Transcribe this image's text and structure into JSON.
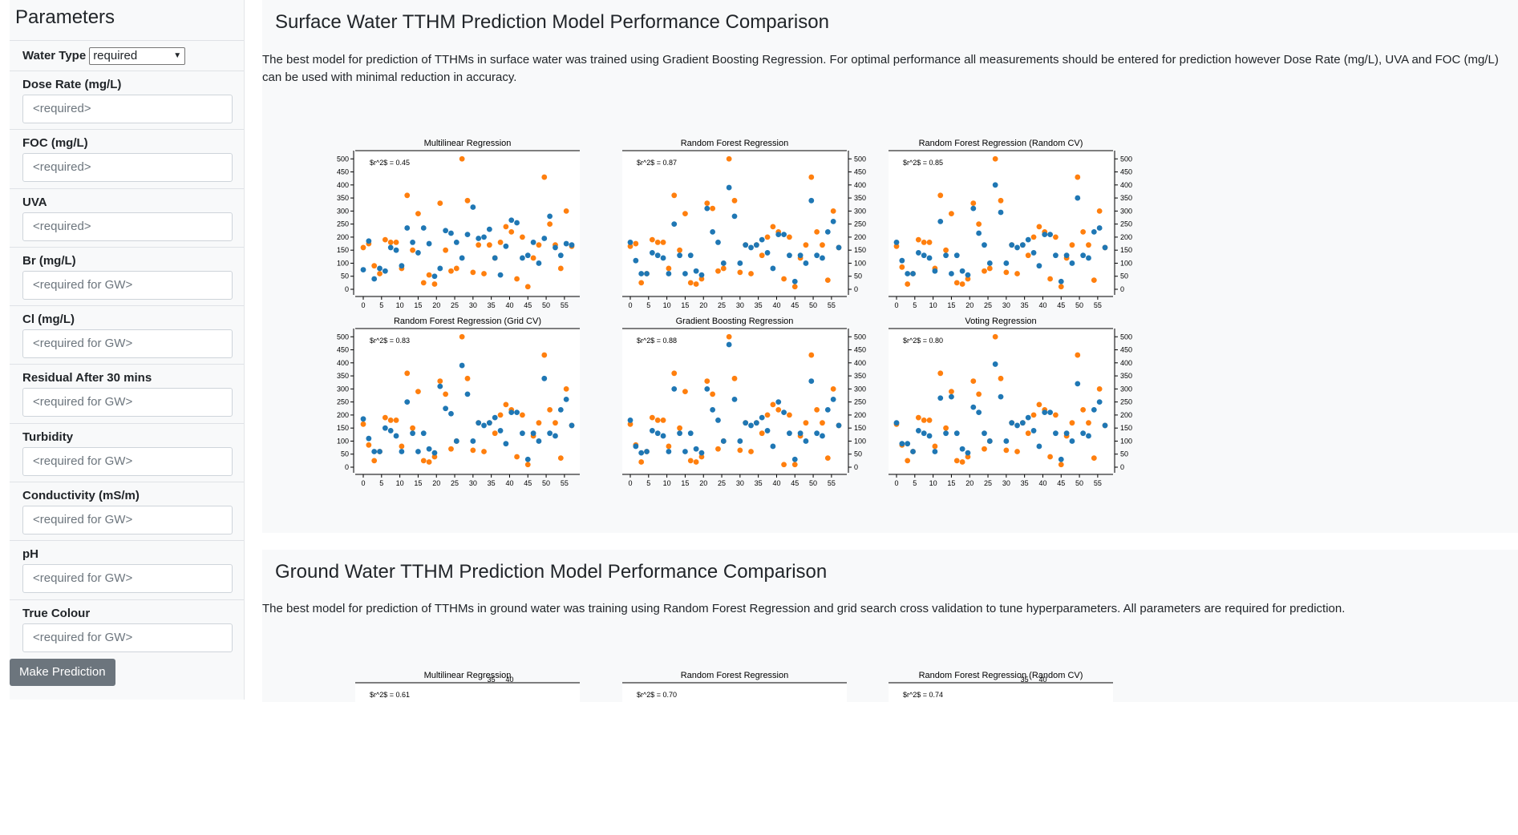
{
  "sidebar": {
    "title": "Parameters",
    "water_type_label": "Water Type",
    "water_type_value": "required",
    "fields": [
      {
        "label": "Dose Rate (mg/L)",
        "placeholder": "<required>"
      },
      {
        "label": "FOC (mg/L)",
        "placeholder": "<required>"
      },
      {
        "label": "UVA",
        "placeholder": "<required>"
      },
      {
        "label": "Br (mg/L)",
        "placeholder": "<required for GW>"
      },
      {
        "label": "Cl (mg/L)",
        "placeholder": "<required for GW>"
      },
      {
        "label": "Residual After 30 mins",
        "placeholder": "<required for GW>"
      },
      {
        "label": "Turbidity",
        "placeholder": "<required for GW>"
      },
      {
        "label": "Conductivity (mS/m)",
        "placeholder": "<required for GW>"
      },
      {
        "label": "pH",
        "placeholder": "<required for GW>"
      },
      {
        "label": "True Colour",
        "placeholder": "<required for GW>"
      }
    ],
    "predict_label": "Make Prediction"
  },
  "surface": {
    "title": "Surface Water TTHM Prediction Model Performance Comparison",
    "description": "The best model for prediction of TTHMs in surface water was trained using Gradient Boosting Regression. For optimal performance all measurements should be entered for prediction however Dose Rate (mg/L), UVA and FOC (mg/L) can be used with minimal reduction in accuracy."
  },
  "ground": {
    "title": "Ground Water TTHM Prediction Model Performance Comparison",
    "description": "The best model for prediction of TTHMs in ground water was training using Random Forest Regression and grid search cross validation to tune hyperparameters. All parameters are required for prediction."
  },
  "colors": {
    "actual": "#ff7f0e",
    "predicted": "#1f77b4"
  },
  "chart_data": [
    {
      "type": "scatter",
      "title": "Multilinear Regression",
      "annotation": "$r^2$ = 0.45",
      "xticks": [
        0,
        5,
        10,
        15,
        20,
        25,
        30,
        35,
        40,
        45,
        50,
        55
      ],
      "yticks": [
        0,
        50,
        100,
        150,
        200,
        250,
        300,
        350,
        400,
        450,
        500
      ],
      "ylim": [
        0,
        510
      ],
      "series": [
        {
          "values": [
            160,
            175,
            90,
            60,
            190,
            180,
            180,
            80,
            360,
            150,
            290,
            25,
            55,
            20,
            330,
            150,
            70,
            80,
            500,
            340,
            65,
            170,
            60,
            170,
            120,
            180,
            240,
            220,
            40,
            200,
            10,
            120,
            170,
            430,
            250,
            170,
            80,
            300,
            165
          ]
        },
        {
          "values": [
            75,
            185,
            40,
            80,
            70,
            160,
            150,
            90,
            235,
            180,
            140,
            235,
            175,
            50,
            80,
            225,
            215,
            180,
            120,
            210,
            315,
            195,
            200,
            230,
            120,
            55,
            165,
            265,
            255,
            120,
            130,
            180,
            100,
            195,
            280,
            160,
            130,
            175,
            170
          ]
        }
      ]
    },
    {
      "type": "scatter",
      "title": "Random Forest Regression",
      "annotation": "$r^2$ = 0.87",
      "xticks": [
        0,
        5,
        10,
        15,
        20,
        25,
        30,
        35,
        40,
        45,
        50,
        55
      ],
      "yticks": [
        0,
        50,
        100,
        150,
        200,
        250,
        300,
        350,
        400,
        450,
        500
      ],
      "ylim": [
        0,
        510
      ],
      "series": [
        {
          "values": [
            165,
            175,
            25,
            60,
            190,
            180,
            180,
            80,
            360,
            150,
            290,
            25,
            20,
            40,
            330,
            310,
            70,
            80,
            500,
            340,
            65,
            170,
            60,
            170,
            130,
            200,
            240,
            220,
            40,
            200,
            10,
            120,
            170,
            430,
            220,
            170,
            35,
            300,
            160
          ]
        },
        {
          "values": [
            180,
            110,
            60,
            60,
            140,
            130,
            120,
            60,
            250,
            130,
            60,
            130,
            70,
            55,
            310,
            220,
            180,
            100,
            390,
            280,
            100,
            170,
            160,
            170,
            190,
            140,
            80,
            210,
            210,
            130,
            30,
            130,
            100,
            340,
            130,
            120,
            220,
            260,
            160
          ]
        }
      ]
    },
    {
      "type": "scatter",
      "title": "Random Forest Regression (Random CV)",
      "annotation": "$r^2$ = 0.85",
      "xticks": [
        0,
        5,
        10,
        15,
        20,
        25,
        30,
        35,
        40,
        45,
        50,
        55
      ],
      "yticks": [
        0,
        50,
        100,
        150,
        200,
        250,
        300,
        350,
        400,
        450,
        500
      ],
      "ylim": [
        0,
        510
      ],
      "series": [
        {
          "values": [
            165,
            85,
            20,
            60,
            190,
            180,
            180,
            80,
            360,
            150,
            290,
            25,
            20,
            40,
            330,
            250,
            70,
            80,
            500,
            340,
            65,
            170,
            60,
            170,
            130,
            200,
            240,
            220,
            40,
            200,
            10,
            120,
            170,
            430,
            220,
            170,
            35,
            300,
            160
          ]
        },
        {
          "values": [
            180,
            110,
            60,
            60,
            140,
            130,
            120,
            70,
            260,
            130,
            60,
            130,
            70,
            55,
            310,
            215,
            170,
            100,
            400,
            295,
            100,
            170,
            160,
            170,
            190,
            140,
            90,
            210,
            210,
            130,
            30,
            130,
            100,
            350,
            130,
            120,
            220,
            235,
            160
          ]
        }
      ]
    },
    {
      "type": "scatter",
      "title": "Random Forest Regression (Grid CV)",
      "annotation": "$r^2$ = 0.83",
      "xticks": [
        0,
        5,
        10,
        15,
        20,
        25,
        30,
        35,
        40,
        45,
        50,
        55
      ],
      "yticks": [
        0,
        50,
        100,
        150,
        200,
        250,
        300,
        350,
        400,
        450,
        500
      ],
      "ylim": [
        0,
        510
      ],
      "series": [
        {
          "values": [
            165,
            85,
            25,
            60,
            190,
            180,
            180,
            80,
            360,
            150,
            290,
            25,
            20,
            40,
            330,
            280,
            70,
            100,
            500,
            340,
            65,
            170,
            60,
            170,
            130,
            200,
            240,
            220,
            40,
            200,
            10,
            120,
            170,
            430,
            220,
            170,
            35,
            300,
            160
          ]
        },
        {
          "values": [
            185,
            110,
            60,
            60,
            150,
            140,
            120,
            60,
            250,
            130,
            60,
            130,
            70,
            55,
            310,
            225,
            205,
            100,
            390,
            280,
            100,
            170,
            160,
            170,
            190,
            140,
            90,
            210,
            210,
            130,
            30,
            130,
            100,
            340,
            130,
            120,
            220,
            260,
            160
          ]
        }
      ]
    },
    {
      "type": "scatter",
      "title": "Gradient Boosting Regression",
      "annotation": "$r^2$ = 0.88",
      "xticks": [
        0,
        5,
        10,
        15,
        20,
        25,
        30,
        35,
        40,
        45,
        50,
        55
      ],
      "yticks": [
        0,
        50,
        100,
        150,
        200,
        250,
        300,
        350,
        400,
        450,
        500
      ],
      "ylim": [
        0,
        510
      ],
      "series": [
        {
          "values": [
            165,
            85,
            20,
            60,
            190,
            180,
            180,
            80,
            360,
            150,
            290,
            25,
            20,
            40,
            330,
            280,
            70,
            100,
            500,
            340,
            65,
            170,
            60,
            170,
            130,
            200,
            240,
            220,
            10,
            200,
            10,
            120,
            170,
            430,
            220,
            170,
            35,
            300,
            160
          ]
        },
        {
          "values": [
            180,
            80,
            55,
            60,
            140,
            130,
            120,
            60,
            300,
            130,
            60,
            130,
            70,
            55,
            300,
            220,
            180,
            100,
            470,
            260,
            100,
            170,
            160,
            170,
            190,
            140,
            80,
            250,
            210,
            130,
            30,
            130,
            100,
            330,
            130,
            120,
            220,
            260,
            160
          ]
        }
      ]
    },
    {
      "type": "scatter",
      "title": "Voting Regression",
      "annotation": "$r^2$ = 0.80",
      "xticks": [
        0,
        5,
        10,
        15,
        20,
        25,
        30,
        35,
        40,
        45,
        50,
        55
      ],
      "yticks": [
        0,
        50,
        100,
        150,
        200,
        250,
        300,
        350,
        400,
        450,
        500
      ],
      "ylim": [
        0,
        510
      ],
      "series": [
        {
          "values": [
            165,
            85,
            25,
            60,
            190,
            180,
            180,
            80,
            360,
            150,
            290,
            25,
            20,
            40,
            330,
            280,
            70,
            100,
            500,
            340,
            65,
            170,
            60,
            170,
            130,
            200,
            240,
            220,
            40,
            200,
            10,
            120,
            170,
            430,
            220,
            170,
            35,
            300,
            160
          ]
        },
        {
          "values": [
            170,
            90,
            90,
            60,
            140,
            130,
            120,
            60,
            265,
            130,
            270,
            130,
            70,
            55,
            230,
            210,
            130,
            100,
            395,
            270,
            100,
            170,
            160,
            170,
            190,
            140,
            80,
            210,
            210,
            130,
            30,
            130,
            100,
            320,
            130,
            120,
            220,
            250,
            160
          ]
        }
      ]
    },
    {
      "type": "scatter",
      "title": "Multilinear Regression",
      "annotation": "$r^2$ = 0.61",
      "xticks": [
        35,
        40
      ],
      "series": [
        {
          "values": []
        },
        {
          "values": []
        }
      ]
    },
    {
      "type": "scatter",
      "title": "Random Forest Regression",
      "annotation": "$r^2$ = 0.70",
      "series": [
        {
          "values": []
        },
        {
          "values": []
        }
      ]
    },
    {
      "type": "scatter",
      "title": "Random Forest Regression (Random CV)",
      "annotation": "$r^2$ = 0.74",
      "xticks": [
        35,
        40
      ],
      "series": [
        {
          "values": []
        },
        {
          "values": []
        }
      ]
    }
  ]
}
